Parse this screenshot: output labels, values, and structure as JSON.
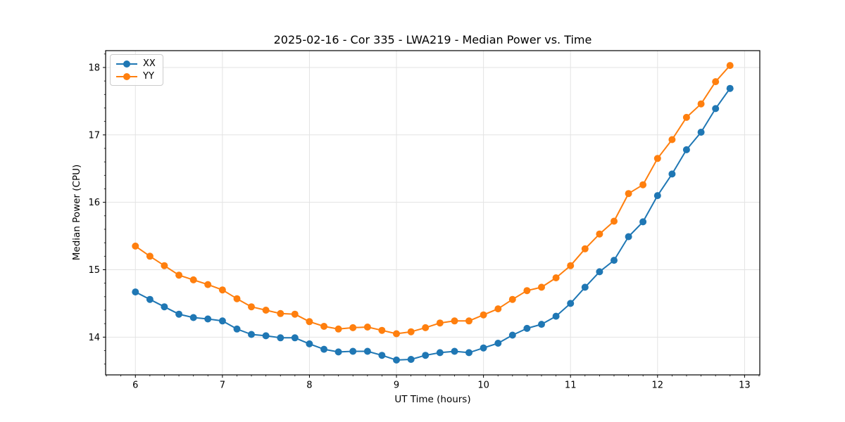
{
  "chart_data": {
    "type": "line",
    "title": "2025-02-16 - Cor 335 - LWA219 - Median Power vs. Time",
    "xlabel": "UT Time (hours)",
    "ylabel": "Median Power (CPU)",
    "grid": true,
    "legend_position": "upper left",
    "marker": "o",
    "xlim": [
      5.658,
      13.175
    ],
    "ylim": [
      13.44,
      18.25
    ],
    "x_ticks": [
      6,
      7,
      8,
      9,
      10,
      11,
      12,
      13
    ],
    "y_ticks": [
      14,
      15,
      16,
      17,
      18
    ],
    "x_minor_divisions_per_unit": 6,
    "y_minor_step": 0.2,
    "x": [
      6.0,
      6.167,
      6.333,
      6.5,
      6.667,
      6.833,
      7.0,
      7.167,
      7.333,
      7.5,
      7.667,
      7.833,
      8.0,
      8.167,
      8.333,
      8.5,
      8.667,
      8.833,
      9.0,
      9.167,
      9.333,
      9.5,
      9.667,
      9.833,
      10.0,
      10.167,
      10.333,
      10.5,
      10.667,
      10.833,
      11.0,
      11.167,
      11.333,
      11.5,
      11.667,
      11.833,
      12.0,
      12.167,
      12.333,
      12.5,
      12.667,
      12.833
    ],
    "series": [
      {
        "name": "XX",
        "color": "#1f77b4",
        "values": [
          14.67,
          14.56,
          14.45,
          14.34,
          14.29,
          14.27,
          14.24,
          14.12,
          14.04,
          14.02,
          13.99,
          13.99,
          13.9,
          13.82,
          13.78,
          13.79,
          13.79,
          13.73,
          13.66,
          13.67,
          13.73,
          13.77,
          13.79,
          13.77,
          13.84,
          13.91,
          14.03,
          14.13,
          14.19,
          14.31,
          14.5,
          14.74,
          14.97,
          15.14,
          15.49,
          15.71,
          16.1,
          16.42,
          16.78,
          17.04,
          17.39,
          17.69
        ]
      },
      {
        "name": "YY",
        "color": "#ff7f0e",
        "values": [
          15.35,
          15.2,
          15.06,
          14.92,
          14.85,
          14.78,
          14.7,
          14.57,
          14.45,
          14.4,
          14.35,
          14.34,
          14.23,
          14.16,
          14.12,
          14.14,
          14.15,
          14.1,
          14.05,
          14.08,
          14.14,
          14.21,
          14.24,
          14.24,
          14.33,
          14.42,
          14.56,
          14.69,
          14.74,
          14.88,
          15.06,
          15.31,
          15.53,
          15.72,
          16.13,
          16.26,
          16.65,
          16.93,
          17.26,
          17.46,
          17.79,
          18.03
        ]
      }
    ],
    "style": {
      "grid_color": "#e3e3e3",
      "spine_color": "#000000",
      "tick_color": "#000000",
      "background": "#ffffff",
      "marker_radius": 5,
      "line_width": 2
    }
  }
}
